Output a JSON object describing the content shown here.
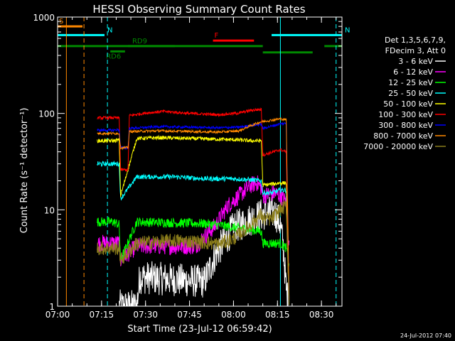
{
  "chart_data": {
    "type": "line",
    "title": "HESSI Observing Summary Count Rates",
    "xlabel": "Start Time (23-Jul-12 06:59:42)",
    "ylabel": "Count Rate (s⁻¹ detector⁻¹)",
    "x_unit": "minutes after 07:00 UT",
    "xlim": [
      0,
      97
    ],
    "ylim": [
      1,
      1000
    ],
    "y_scale": "log",
    "x_ticks": [
      {
        "t": 0,
        "label": "07:00"
      },
      {
        "t": 15,
        "label": "07:15"
      },
      {
        "t": 30,
        "label": "07:30"
      },
      {
        "t": 45,
        "label": "07:45"
      },
      {
        "t": 60,
        "label": "08:00"
      },
      {
        "t": 75,
        "label": "08:15"
      },
      {
        "t": 90,
        "label": "08:30"
      }
    ],
    "y_ticks": [
      {
        "v": 1,
        "label": "1"
      },
      {
        "v": 10,
        "label": "10"
      },
      {
        "v": 100,
        "label": "100"
      },
      {
        "v": 1000,
        "label": "1000"
      }
    ],
    "legend_position": "right",
    "legend_header": [
      "Det 1,3,5,6,7,9,",
      "FDecim 3, Att 0"
    ],
    "series": [
      {
        "name": "3 - 6 keV",
        "color": "#ffffff",
        "noise": 0.35,
        "points": [
          [
            21,
            1.0
          ],
          [
            27,
            1.0
          ],
          [
            28,
            2.0
          ],
          [
            50,
            1.8
          ],
          [
            54,
            3.5
          ],
          [
            60,
            6.5
          ],
          [
            66,
            8
          ],
          [
            70,
            9
          ],
          [
            73,
            9.5
          ],
          [
            74.5,
            9
          ],
          [
            76,
            7
          ],
          [
            77,
            4
          ],
          [
            78,
            1.5
          ],
          [
            79,
            1.0
          ]
        ]
      },
      {
        "name": "6 - 12 keV",
        "color": "#ff00ff",
        "noise": 0.18,
        "points": [
          [
            13.5,
            4.5
          ],
          [
            19,
            4.5
          ],
          [
            21,
            4.5
          ],
          [
            21.5,
            3.0
          ],
          [
            27,
            4.2
          ],
          [
            47,
            4.2
          ],
          [
            54,
            7
          ],
          [
            58,
            11
          ],
          [
            63,
            15
          ],
          [
            66,
            18
          ],
          [
            68,
            19
          ],
          [
            69.5,
            17
          ],
          [
            70,
            14
          ],
          [
            74,
            15
          ],
          [
            76,
            14
          ],
          [
            78,
            12
          ],
          [
            79,
            4
          ]
        ]
      },
      {
        "name": "12 - 25 keV",
        "color": "#00ff00",
        "noise": 0.1,
        "points": [
          [
            13.5,
            7.5
          ],
          [
            19,
            7.5
          ],
          [
            21,
            7
          ],
          [
            21.5,
            3
          ],
          [
            27,
            7.5
          ],
          [
            50,
            7.2
          ],
          [
            54,
            7
          ],
          [
            60,
            6.6
          ],
          [
            66,
            6.2
          ],
          [
            69.5,
            6.0
          ],
          [
            70,
            4.5
          ],
          [
            76,
            4.5
          ],
          [
            78,
            4
          ],
          [
            79,
            2.5
          ]
        ]
      },
      {
        "name": "25 - 50 keV",
        "color": "#00ffff",
        "noise": 0.05,
        "points": [
          [
            13.5,
            30
          ],
          [
            19,
            30
          ],
          [
            21,
            30
          ],
          [
            21.5,
            13
          ],
          [
            27,
            22
          ],
          [
            40,
            22
          ],
          [
            50,
            21
          ],
          [
            60,
            21
          ],
          [
            66,
            20.5
          ],
          [
            69.5,
            20
          ],
          [
            70,
            15
          ],
          [
            73,
            15
          ],
          [
            76,
            16
          ],
          [
            78,
            16
          ],
          [
            79,
            1
          ]
        ]
      },
      {
        "name": "50 - 100 keV",
        "color": "#ffff00",
        "noise": 0.04,
        "points": [
          [
            13.5,
            52
          ],
          [
            19,
            52
          ],
          [
            21,
            53
          ],
          [
            21.5,
            14
          ],
          [
            27,
            55
          ],
          [
            35,
            56
          ],
          [
            45,
            55
          ],
          [
            55,
            54
          ],
          [
            62,
            53
          ],
          [
            66,
            52
          ],
          [
            69.5,
            52
          ],
          [
            70,
            18
          ],
          [
            76,
            19
          ],
          [
            78,
            19
          ],
          [
            79,
            1
          ]
        ]
      },
      {
        "name": "100 - 300 keV",
        "color": "#ff0000",
        "noise": 0.03,
        "points": [
          [
            13.5,
            90
          ],
          [
            19,
            90
          ],
          [
            21,
            90
          ],
          [
            21.5,
            26
          ],
          [
            24,
            26
          ],
          [
            24.5,
            95
          ],
          [
            30,
            101
          ],
          [
            36,
            105
          ],
          [
            45,
            100
          ],
          [
            55,
            97
          ],
          [
            62,
            101
          ],
          [
            66,
            108
          ],
          [
            69.5,
            110
          ],
          [
            70,
            37
          ],
          [
            76,
            42
          ],
          [
            78,
            40
          ],
          [
            79,
            1
          ]
        ]
      },
      {
        "name": "300 - 800 keV",
        "color": "#0000ff",
        "noise": 0.025,
        "points": [
          [
            13.5,
            67
          ],
          [
            19,
            67
          ],
          [
            21,
            68
          ],
          [
            21.5,
            44
          ],
          [
            24,
            44
          ],
          [
            24.5,
            70
          ],
          [
            35,
            73
          ],
          [
            45,
            72
          ],
          [
            55,
            71
          ],
          [
            62,
            72
          ],
          [
            66,
            75
          ],
          [
            69.5,
            77
          ],
          [
            70,
            70
          ],
          [
            76,
            78
          ],
          [
            78,
            79
          ],
          [
            79,
            1
          ]
        ]
      },
      {
        "name": "800 - 7000 keV",
        "color": "#ff8800",
        "noise": 0.025,
        "points": [
          [
            13.5,
            62
          ],
          [
            19,
            62
          ],
          [
            21,
            62
          ],
          [
            21.5,
            44
          ],
          [
            24,
            44
          ],
          [
            24.5,
            65
          ],
          [
            35,
            66
          ],
          [
            45,
            65
          ],
          [
            55,
            64
          ],
          [
            62,
            66
          ],
          [
            66,
            75
          ],
          [
            69.5,
            82
          ],
          [
            76,
            88
          ],
          [
            78,
            86
          ],
          [
            79,
            1
          ]
        ]
      },
      {
        "name": "7000 - 20000 keV",
        "color": "#8b7d1a",
        "noise": 0.15,
        "points": [
          [
            13.5,
            4.0
          ],
          [
            19,
            4.0
          ],
          [
            21,
            4.0
          ],
          [
            21.5,
            3
          ],
          [
            27,
            4.5
          ],
          [
            40,
            4.8
          ],
          [
            50,
            4.6
          ],
          [
            55,
            4.4
          ],
          [
            60,
            5
          ],
          [
            66,
            7
          ],
          [
            69.5,
            9
          ],
          [
            70,
            8
          ],
          [
            73,
            8
          ],
          [
            76,
            10
          ],
          [
            78,
            11
          ],
          [
            79,
            1
          ]
        ]
      }
    ],
    "segments": [
      {
        "label": "S",
        "color": "#ff8800",
        "t0": 0,
        "t1": 8.5,
        "level": 800
      },
      {
        "label": "N",
        "color": "#00ffff",
        "t0": 0,
        "t1": 16,
        "level": 650
      },
      {
        "label": "N",
        "color": "#00ffff",
        "t0": 73,
        "t1": 97,
        "level": 650
      },
      {
        "label": "F",
        "color": "#ff0000",
        "t0": 53,
        "t1": 67,
        "level": 570
      },
      {
        "label": "",
        "color": "#008800",
        "t0": 0,
        "t1": 70,
        "level": 500
      },
      {
        "label": "RD9",
        "color": "#008800",
        "t0": 24,
        "t1": 40,
        "level": 500
      },
      {
        "label": "",
        "color": "#008800",
        "t0": 70,
        "t1": 87,
        "level": 430
      },
      {
        "label": "",
        "color": "#008800",
        "t0": 91,
        "t1": 97,
        "level": 500
      },
      {
        "label": "RD6",
        "color": "#008800",
        "t0": 18,
        "t1": 23,
        "level": 440
      }
    ],
    "vlines": [
      {
        "t": 3,
        "color": "#ff8800",
        "style": "solid"
      },
      {
        "t": 9,
        "color": "#ff8800",
        "style": "dash"
      },
      {
        "t": 17,
        "color": "#00ffff",
        "style": "dash"
      },
      {
        "t": 76,
        "color": "#00ffff",
        "style": "solid"
      },
      {
        "t": 95,
        "color": "#00ffff",
        "style": "dash"
      }
    ],
    "timestamp": "24-Jul-2012 07:40"
  }
}
